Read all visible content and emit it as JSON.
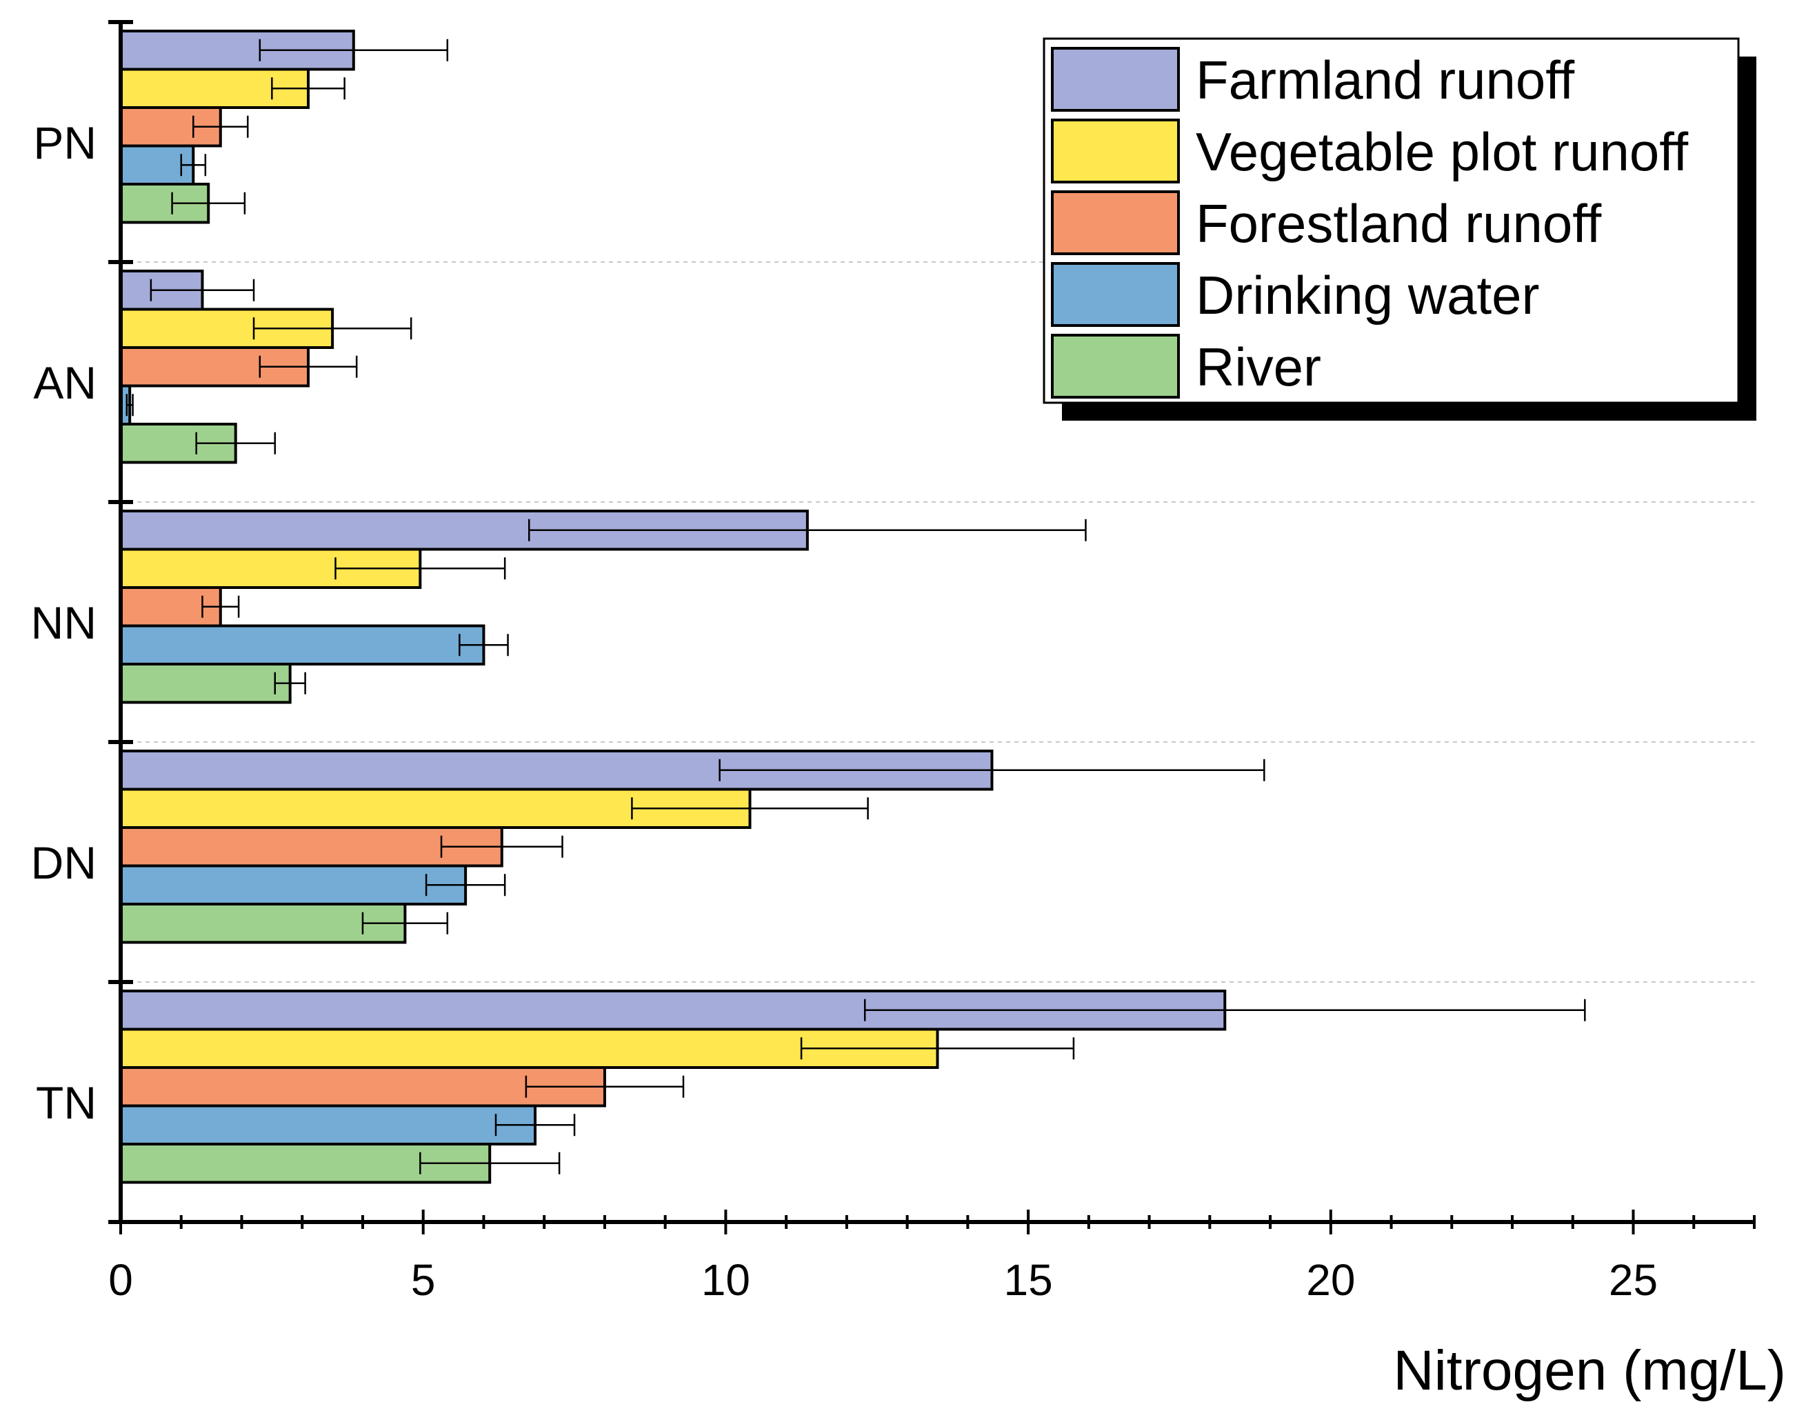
{
  "chart_data": {
    "type": "bar",
    "orientation": "horizontal",
    "title": "",
    "xlabel": "Nitrogen (mg/L)",
    "ylabel": "",
    "xlim": [
      0,
      27
    ],
    "xticks": [
      0,
      5,
      10,
      15,
      20,
      25
    ],
    "xtick_labels": [
      "0",
      "5",
      "10",
      "15",
      "20",
      "25"
    ],
    "minor_tick_step": 1,
    "grid": false,
    "group_separators": true,
    "legend_position": "top-right",
    "categories": [
      "PN",
      "AN",
      "NN",
      "DN",
      "TN"
    ],
    "series": [
      {
        "name": "Farmland runoff",
        "color": "#a5acd9",
        "values": [
          3.85,
          1.35,
          11.35,
          14.4,
          18.25
        ],
        "errors": [
          1.55,
          0.85,
          4.6,
          4.5,
          5.95
        ]
      },
      {
        "name": "Vegetable plot runoff",
        "color": "#ffe74f",
        "values": [
          3.1,
          3.5,
          4.95,
          10.4,
          13.5
        ],
        "errors": [
          0.6,
          1.3,
          1.4,
          1.95,
          2.25
        ]
      },
      {
        "name": "Forestland runoff",
        "color": "#f5956b",
        "values": [
          1.65,
          3.1,
          1.65,
          6.3,
          8.0
        ],
        "errors": [
          0.45,
          0.8,
          0.3,
          1.0,
          1.3
        ]
      },
      {
        "name": "Drinking water",
        "color": "#74acd6",
        "values": [
          1.2,
          0.15,
          6.0,
          5.7,
          6.85
        ],
        "errors": [
          0.2,
          0.05,
          0.4,
          0.65,
          0.65
        ]
      },
      {
        "name": "River",
        "color": "#9ed18d",
        "values": [
          1.45,
          1.9,
          2.8,
          4.7,
          6.1
        ],
        "errors": [
          0.6,
          0.65,
          0.25,
          0.7,
          1.15
        ]
      }
    ]
  }
}
